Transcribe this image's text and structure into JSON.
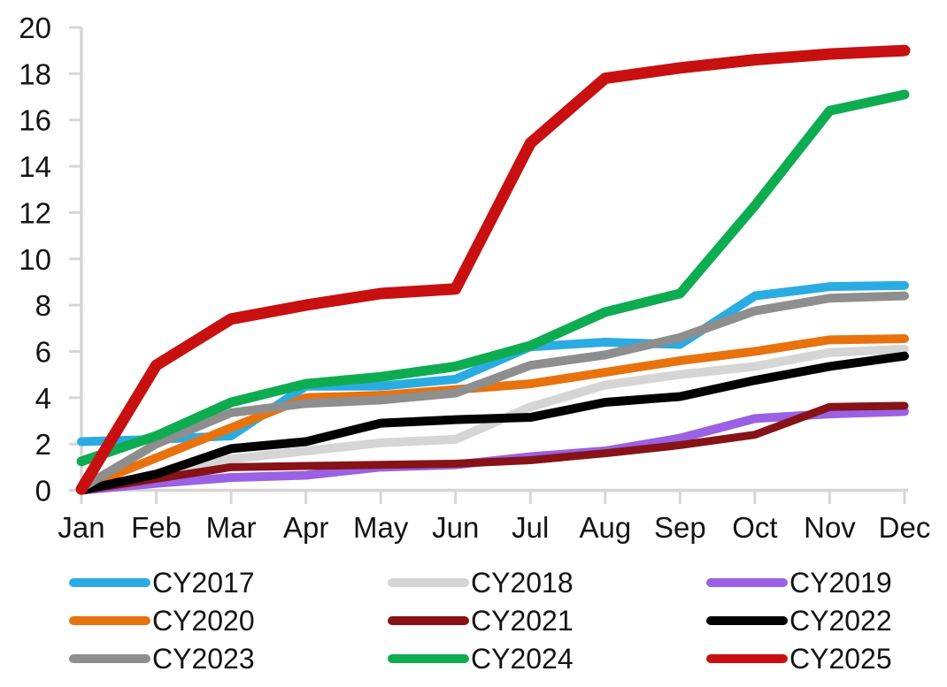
{
  "chart_data": {
    "type": "line",
    "categories": [
      "Jan",
      "Feb",
      "Mar",
      "Apr",
      "May",
      "Jun",
      "Jul",
      "Aug",
      "Sep",
      "Oct",
      "Nov",
      "Dec"
    ],
    "series": [
      {
        "name": "CY2017",
        "color": "#2AACE2",
        "thickness": 10,
        "values": [
          2.1,
          2.2,
          2.35,
          4.5,
          4.5,
          4.8,
          6.2,
          6.4,
          6.3,
          8.4,
          8.8,
          8.85
        ]
      },
      {
        "name": "CY2018",
        "color": "#D5D5D5",
        "thickness": 10,
        "values": [
          0,
          0.55,
          1.35,
          1.7,
          2.05,
          2.2,
          3.6,
          4.55,
          5.0,
          5.35,
          5.95,
          6.1
        ]
      },
      {
        "name": "CY2019",
        "color": "#9A61E4",
        "thickness": 10,
        "values": [
          0,
          0.3,
          0.55,
          0.65,
          1.0,
          1.1,
          1.45,
          1.7,
          2.25,
          3.1,
          3.3,
          3.4
        ]
      },
      {
        "name": "CY2020",
        "color": "#E8720E",
        "thickness": 10,
        "values": [
          0.1,
          1.4,
          2.7,
          4.0,
          4.1,
          4.35,
          4.6,
          5.1,
          5.6,
          6.0,
          6.5,
          6.55
        ]
      },
      {
        "name": "CY2021",
        "color": "#871316",
        "thickness": 9,
        "values": [
          0,
          0.5,
          1.0,
          1.05,
          1.1,
          1.15,
          1.3,
          1.6,
          1.95,
          2.4,
          3.6,
          3.65
        ]
      },
      {
        "name": "CY2022",
        "color": "#000000",
        "thickness": 10,
        "values": [
          0,
          0.7,
          1.8,
          2.1,
          2.9,
          3.05,
          3.15,
          3.8,
          4.05,
          4.75,
          5.35,
          5.8
        ]
      },
      {
        "name": "CY2023",
        "color": "#8E8E8E",
        "thickness": 10,
        "values": [
          0.1,
          2.0,
          3.35,
          3.75,
          3.9,
          4.2,
          5.4,
          5.85,
          6.6,
          7.75,
          8.3,
          8.4
        ]
      },
      {
        "name": "CY2024",
        "color": "#0EAC50",
        "thickness": 11,
        "values": [
          1.25,
          2.35,
          3.8,
          4.6,
          4.9,
          5.35,
          6.25,
          7.7,
          8.5,
          12.3,
          16.4,
          17.1
        ]
      },
      {
        "name": "CY2025",
        "color": "#C81010",
        "thickness": 13,
        "values": [
          0.05,
          5.4,
          7.4,
          8.0,
          8.5,
          8.7,
          15.0,
          17.8,
          18.25,
          18.6,
          18.85,
          19.0
        ]
      }
    ],
    "ylim": [
      0,
      20
    ],
    "ytick_step": 2,
    "grid": false,
    "legend_position": "bottom",
    "axis_color": "#D6D6D6",
    "text_color": "#141414"
  }
}
